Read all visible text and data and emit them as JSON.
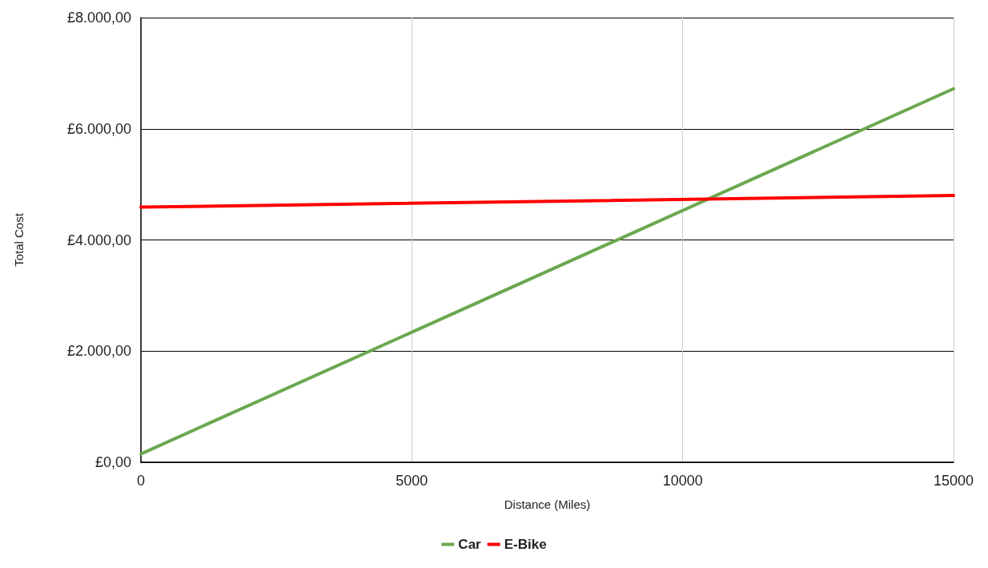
{
  "chart_data": {
    "type": "line",
    "xlabel": "Distance (Miles)",
    "ylabel": "Total Cost",
    "x": [
      0,
      15000
    ],
    "series": [
      {
        "name": "Car",
        "color": "#6aa84f",
        "values": [
          150,
          6720
        ]
      },
      {
        "name": "E-Bike",
        "color": "#ff0000",
        "values": [
          4590,
          4800
        ]
      }
    ],
    "xlim": [
      0,
      15000
    ],
    "xticks": [
      0,
      5000,
      10000,
      15000
    ],
    "ylim": [
      0,
      8000
    ],
    "yticks": [
      {
        "value": 0,
        "label": "£0,00"
      },
      {
        "value": 2000,
        "label": "£2.000,00"
      },
      {
        "value": 4000,
        "label": "£4.000,00"
      },
      {
        "value": 6000,
        "label": "£6.000,00"
      },
      {
        "value": 8000,
        "label": "£8.000,00"
      }
    ],
    "grid": true,
    "legend": "bottom",
    "marker": "none",
    "line_style": "solid"
  }
}
